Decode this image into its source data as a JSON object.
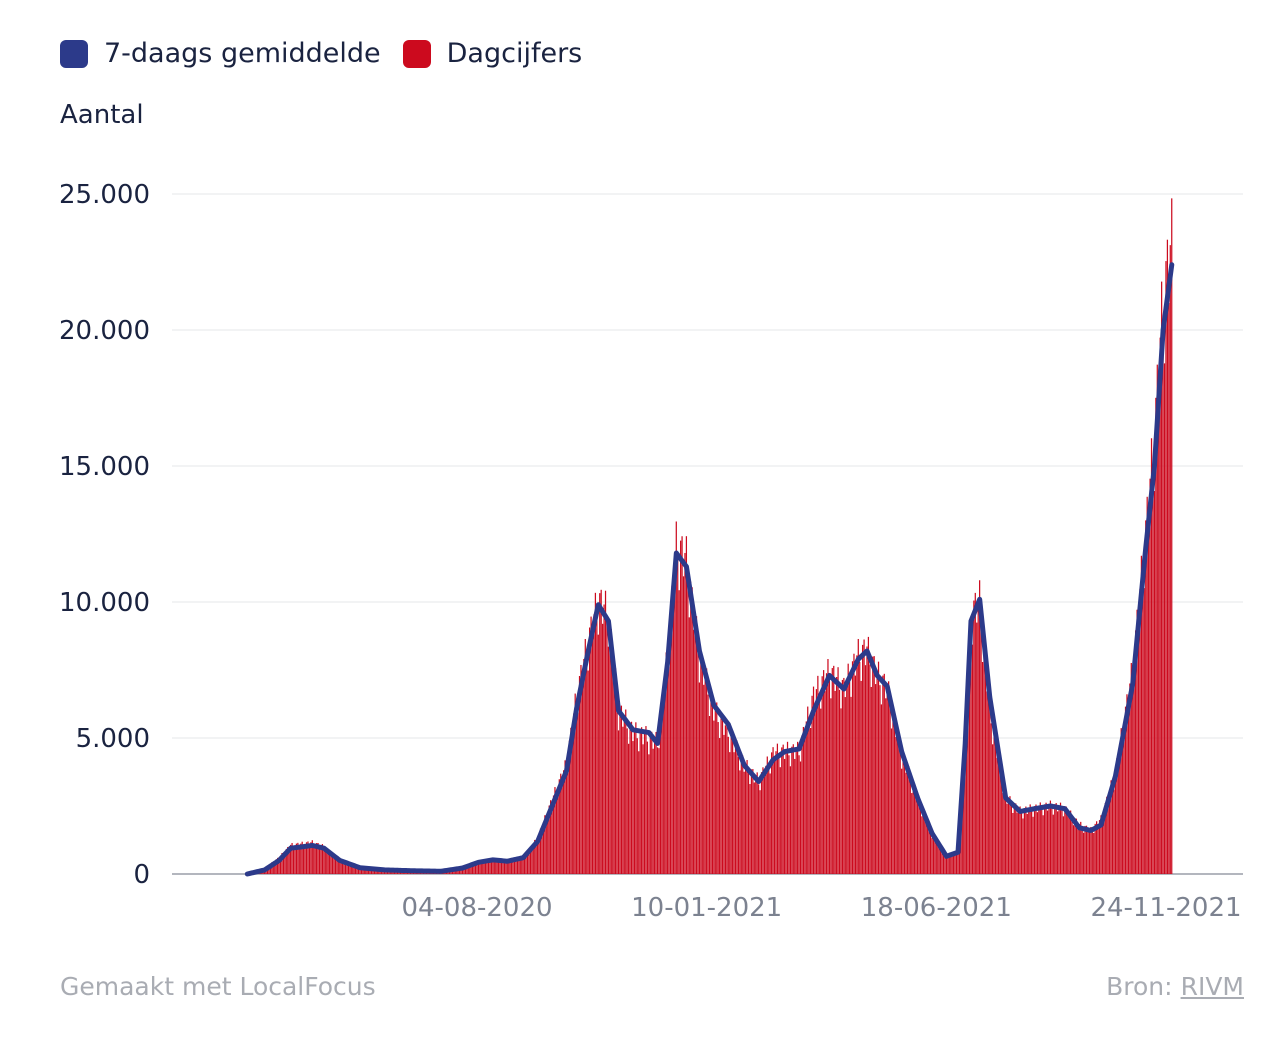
{
  "legend": {
    "items": [
      {
        "label": "7-daags gemiddelde",
        "color": "#2c3a8a"
      },
      {
        "label": "Dagcijfers",
        "color": "#cc0a1e"
      }
    ]
  },
  "footer": {
    "made_with": "Gemaakt met LocalFocus",
    "source_prefix": "Bron:",
    "source_link": "RIVM"
  },
  "chart_data": {
    "type": "bar",
    "ylabel": "Aantal",
    "ylim": [
      0,
      25000
    ],
    "yticks": [
      "0",
      "5.000",
      "10.000",
      "15.000",
      "20.000",
      "25.000"
    ],
    "xticks": [
      "04-08-2020",
      "10-01-2021",
      "18-06-2021",
      "24-11-2021"
    ],
    "grid": true,
    "legend_position": "top-left",
    "x_range": [
      "2020-02-27",
      "2021-11-28"
    ],
    "series": [
      {
        "name": "Dagcijfers",
        "kind": "bar",
        "color": "#cc0a1e",
        "points": [
          [
            "2020-02-27",
            0
          ],
          [
            "2020-03-10",
            200
          ],
          [
            "2020-03-20",
            600
          ],
          [
            "2020-03-28",
            1050
          ],
          [
            "2020-04-05",
            1100
          ],
          [
            "2020-04-12",
            1150
          ],
          [
            "2020-04-20",
            1000
          ],
          [
            "2020-05-01",
            500
          ],
          [
            "2020-05-15",
            250
          ],
          [
            "2020-06-01",
            150
          ],
          [
            "2020-06-20",
            120
          ],
          [
            "2020-07-10",
            100
          ],
          [
            "2020-07-25",
            250
          ],
          [
            "2020-08-05",
            450
          ],
          [
            "2020-08-15",
            550
          ],
          [
            "2020-08-25",
            480
          ],
          [
            "2020-09-05",
            600
          ],
          [
            "2020-09-15",
            1300
          ],
          [
            "2020-09-25",
            2700
          ],
          [
            "2020-10-05",
            4000
          ],
          [
            "2020-10-12",
            6500
          ],
          [
            "2020-10-20",
            8500
          ],
          [
            "2020-10-27",
            10000
          ],
          [
            "2020-11-03",
            9500
          ],
          [
            "2020-11-10",
            6000
          ],
          [
            "2020-11-20",
            5200
          ],
          [
            "2020-12-01",
            5000
          ],
          [
            "2020-12-07",
            4800
          ],
          [
            "2020-12-14",
            8000
          ],
          [
            "2020-12-20",
            12000
          ],
          [
            "2020-12-27",
            11500
          ],
          [
            "2021-01-05",
            8000
          ],
          [
            "2021-01-15",
            6000
          ],
          [
            "2021-01-25",
            5200
          ],
          [
            "2021-02-05",
            4000
          ],
          [
            "2021-02-15",
            3400
          ],
          [
            "2021-02-25",
            4400
          ],
          [
            "2021-03-05",
            4500
          ],
          [
            "2021-03-15",
            4500
          ],
          [
            "2021-03-25",
            6500
          ],
          [
            "2021-04-05",
            7400
          ],
          [
            "2021-04-15",
            6800
          ],
          [
            "2021-04-25",
            8000
          ],
          [
            "2021-05-01",
            8200
          ],
          [
            "2021-05-08",
            7300
          ],
          [
            "2021-05-15",
            6800
          ],
          [
            "2021-05-25",
            4400
          ],
          [
            "2021-06-05",
            2800
          ],
          [
            "2021-06-15",
            1500
          ],
          [
            "2021-06-25",
            700
          ],
          [
            "2021-07-03",
            800
          ],
          [
            "2021-07-08",
            5000
          ],
          [
            "2021-07-12",
            9500
          ],
          [
            "2021-07-18",
            10000
          ],
          [
            "2021-07-25",
            6000
          ],
          [
            "2021-08-05",
            2800
          ],
          [
            "2021-08-15",
            2300
          ],
          [
            "2021-08-25",
            2400
          ],
          [
            "2021-09-05",
            2500
          ],
          [
            "2021-09-15",
            2400
          ],
          [
            "2021-09-25",
            1800
          ],
          [
            "2021-10-03",
            1600
          ],
          [
            "2021-10-10",
            2000
          ],
          [
            "2021-10-20",
            3700
          ],
          [
            "2021-11-01",
            7500
          ],
          [
            "2021-11-10",
            12500
          ],
          [
            "2021-11-16",
            16000
          ],
          [
            "2021-11-22",
            21000
          ],
          [
            "2021-11-28",
            23000
          ]
        ]
      },
      {
        "name": "7-daags gemiddelde",
        "kind": "line",
        "color": "#2c3a8a",
        "points": [
          [
            "2020-02-27",
            0
          ],
          [
            "2020-03-10",
            150
          ],
          [
            "2020-03-20",
            500
          ],
          [
            "2020-03-28",
            950
          ],
          [
            "2020-04-05",
            1000
          ],
          [
            "2020-04-12",
            1050
          ],
          [
            "2020-04-20",
            950
          ],
          [
            "2020-05-01",
            500
          ],
          [
            "2020-05-15",
            230
          ],
          [
            "2020-06-01",
            150
          ],
          [
            "2020-06-20",
            120
          ],
          [
            "2020-07-10",
            100
          ],
          [
            "2020-07-25",
            220
          ],
          [
            "2020-08-05",
            430
          ],
          [
            "2020-08-15",
            520
          ],
          [
            "2020-08-25",
            470
          ],
          [
            "2020-09-05",
            600
          ],
          [
            "2020-09-15",
            1200
          ],
          [
            "2020-09-25",
            2500
          ],
          [
            "2020-10-05",
            3800
          ],
          [
            "2020-10-12",
            6100
          ],
          [
            "2020-10-20",
            8200
          ],
          [
            "2020-10-27",
            9900
          ],
          [
            "2020-11-03",
            9300
          ],
          [
            "2020-11-10",
            6000
          ],
          [
            "2020-11-20",
            5300
          ],
          [
            "2020-12-01",
            5200
          ],
          [
            "2020-12-07",
            4800
          ],
          [
            "2020-12-14",
            7800
          ],
          [
            "2020-12-20",
            11800
          ],
          [
            "2020-12-27",
            11300
          ],
          [
            "2021-01-05",
            8200
          ],
          [
            "2021-01-15",
            6200
          ],
          [
            "2021-01-25",
            5500
          ],
          [
            "2021-02-05",
            4000
          ],
          [
            "2021-02-15",
            3400
          ],
          [
            "2021-02-25",
            4200
          ],
          [
            "2021-03-05",
            4500
          ],
          [
            "2021-03-15",
            4600
          ],
          [
            "2021-03-25",
            6000
          ],
          [
            "2021-04-05",
            7300
          ],
          [
            "2021-04-15",
            6800
          ],
          [
            "2021-04-25",
            7900
          ],
          [
            "2021-05-01",
            8200
          ],
          [
            "2021-05-08",
            7300
          ],
          [
            "2021-05-15",
            6900
          ],
          [
            "2021-05-25",
            4500
          ],
          [
            "2021-06-05",
            2800
          ],
          [
            "2021-06-15",
            1500
          ],
          [
            "2021-06-25",
            650
          ],
          [
            "2021-07-03",
            800
          ],
          [
            "2021-07-08",
            4800
          ],
          [
            "2021-07-12",
            9300
          ],
          [
            "2021-07-18",
            10100
          ],
          [
            "2021-07-25",
            6500
          ],
          [
            "2021-08-05",
            2800
          ],
          [
            "2021-08-15",
            2300
          ],
          [
            "2021-08-25",
            2400
          ],
          [
            "2021-09-05",
            2500
          ],
          [
            "2021-09-15",
            2400
          ],
          [
            "2021-09-25",
            1700
          ],
          [
            "2021-10-03",
            1600
          ],
          [
            "2021-10-10",
            1800
          ],
          [
            "2021-10-20",
            3600
          ],
          [
            "2021-11-01",
            7000
          ],
          [
            "2021-11-10",
            12000
          ],
          [
            "2021-11-16",
            15000
          ],
          [
            "2021-11-22",
            20000
          ],
          [
            "2021-11-28",
            22400
          ]
        ]
      }
    ]
  }
}
